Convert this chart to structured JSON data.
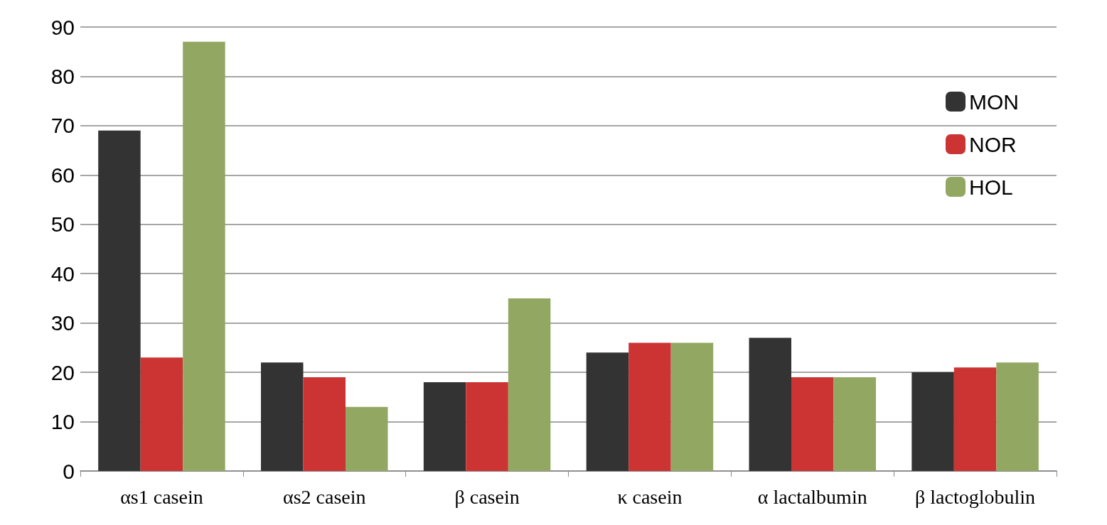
{
  "chart_data": {
    "type": "bar",
    "categories": [
      "αs1 casein",
      "αs2 casein",
      "β casein",
      "κ casein",
      "α lactalbumin",
      "β lactoglobulin"
    ],
    "series": [
      {
        "name": "MON",
        "color": "#333333",
        "values": [
          69,
          22,
          18,
          24,
          27,
          20
        ]
      },
      {
        "name": "NOR",
        "color": "#cc3333",
        "values": [
          23,
          19,
          18,
          26,
          19,
          21
        ]
      },
      {
        "name": "HOL",
        "color": "#92a862",
        "values": [
          87,
          13,
          35,
          26,
          19,
          22
        ]
      }
    ],
    "ylim": [
      0,
      90
    ],
    "yticks": [
      0,
      10,
      20,
      30,
      40,
      50,
      60,
      70,
      80,
      90
    ],
    "grid": "y",
    "legend": "top right"
  }
}
